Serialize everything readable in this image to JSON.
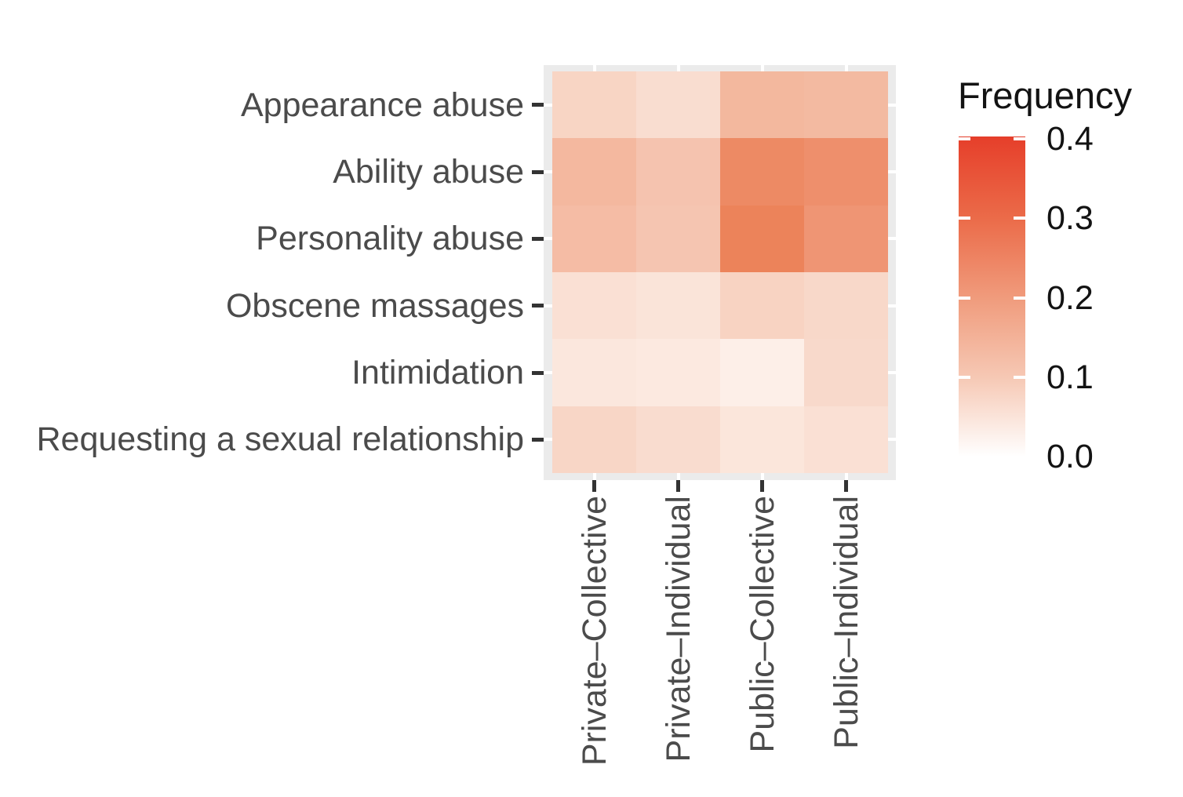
{
  "figure": {
    "background": "#FFFFFF",
    "panel_background": "#EBEBEB",
    "gridline_color": "#FFFFFF",
    "tick_color": "#333333",
    "axis_text_color": "#4B4B4B",
    "legend_text_color": "#131313"
  },
  "chart_data": {
    "type": "heatmap",
    "title": "",
    "xlabel": "",
    "ylabel": "",
    "x_categories": [
      "Private–Collective",
      "Private–Individual",
      "Public–Collective",
      "Public–Individual"
    ],
    "y_categories": [
      "Appearance abuse",
      "Ability abuse",
      "Personality abuse",
      "Obscene massages",
      "Intimidation",
      "Requesting a sexual relationship"
    ],
    "values": [
      [
        0.08,
        0.06,
        0.14,
        0.13
      ],
      [
        0.14,
        0.11,
        0.24,
        0.23
      ],
      [
        0.13,
        0.11,
        0.25,
        0.21
      ],
      [
        0.06,
        0.05,
        0.09,
        0.07
      ],
      [
        0.04,
        0.04,
        0.03,
        0.07
      ],
      [
        0.07,
        0.06,
        0.05,
        0.06
      ]
    ],
    "cell_colors": [
      [
        "#F8D5C4",
        "#F9DDD0",
        "#F3B89E",
        "#F3BAA1"
      ],
      [
        "#F4B89F",
        "#F5C3AF",
        "#ED8A64",
        "#EE8F6C"
      ],
      [
        "#F5BCA5",
        "#F5C5B1",
        "#EC835A",
        "#EF9574"
      ],
      [
        "#FAE0D4",
        "#FAE4D9",
        "#F8D3C2",
        "#F8D8C9"
      ],
      [
        "#FBE7DD",
        "#FCE9E0",
        "#FDEFE8",
        "#F8D9CB"
      ],
      [
        "#F8D6C6",
        "#F9DCCF",
        "#FBE6DB",
        "#FAE0D4"
      ]
    ],
    "grid": "white major gridlines at category positions",
    "legend_position": "right",
    "legend": {
      "title": "Frequency",
      "tick_labels": [
        "0.4",
        "0.3",
        "0.2",
        "0.1",
        "0.0"
      ],
      "tick_values": [
        0.4,
        0.3,
        0.2,
        0.1,
        0.0
      ],
      "range": [
        0.0,
        0.4
      ],
      "gradient_low": "#FFFFFF",
      "gradient_high": "#E6402B",
      "gradient_stops": {
        "0.0": "#FFFFFF",
        "0.1": "#F6C8B4",
        "0.2": "#F09B7C",
        "0.3": "#EB6B49",
        "0.4": "#E6402B"
      }
    }
  }
}
